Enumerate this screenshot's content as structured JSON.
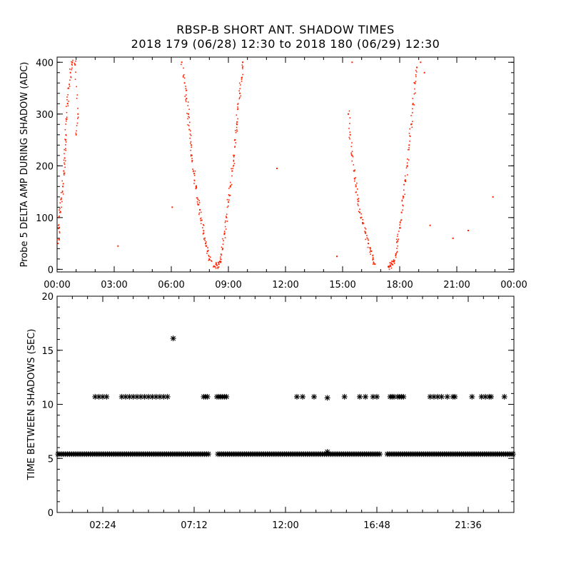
{
  "title": "RBSP-B SHORT ANT. SHADOW TIMES",
  "subtitle": "2018 179 (06/28) 12:30 to 2018 180 (06/29) 12:30",
  "colors": {
    "points_top": "#ff2200",
    "points_bottom": "#000000",
    "axes": "#000000"
  },
  "chart_data": [
    {
      "type": "scatter",
      "ylabel": "Probe 5 DELTA AMP DURING SHADOW (ADC)",
      "xlim_hours": [
        0,
        24
      ],
      "ylim": [
        -5,
        410
      ],
      "x_ticks": [
        "00:00",
        "03:00",
        "06:00",
        "09:00",
        "12:00",
        "15:00",
        "18:00",
        "21:00",
        "00:00"
      ],
      "y_ticks": [
        "0",
        "100",
        "200",
        "300",
        "400"
      ],
      "grid": false,
      "series": [
        {
          "points": [
            [
              0.05,
              50
            ],
            [
              0.1,
              80
            ],
            [
              0.15,
              110
            ],
            [
              0.2,
              135
            ],
            [
              0.3,
              160
            ],
            [
              0.35,
              190
            ],
            [
              0.4,
              215
            ],
            [
              0.45,
              250
            ],
            [
              0.5,
              290
            ],
            [
              0.55,
              320
            ],
            [
              0.6,
              350
            ],
            [
              0.7,
              380
            ],
            [
              0.8,
              400
            ],
            [
              0.95,
              395
            ],
            [
              1.1,
              300
            ],
            [
              1.0,
              260
            ],
            [
              6.55,
              400
            ],
            [
              6.7,
              360
            ],
            [
              6.8,
              330
            ],
            [
              6.9,
              300
            ],
            [
              6.95,
              270
            ],
            [
              7.05,
              240
            ],
            [
              7.1,
              210
            ],
            [
              7.2,
              185
            ],
            [
              7.3,
              160
            ],
            [
              7.4,
              135
            ],
            [
              7.5,
              115
            ],
            [
              7.6,
              95
            ],
            [
              7.7,
              70
            ],
            [
              7.8,
              50
            ],
            [
              7.9,
              35
            ],
            [
              8.0,
              20
            ],
            [
              8.3,
              5
            ],
            [
              8.4,
              8
            ],
            [
              8.5,
              10
            ],
            [
              8.6,
              15
            ],
            [
              8.7,
              40
            ],
            [
              8.8,
              70
            ],
            [
              8.9,
              100
            ],
            [
              9.0,
              130
            ],
            [
              9.1,
              160
            ],
            [
              9.2,
              190
            ],
            [
              9.3,
              220
            ],
            [
              9.35,
              250
            ],
            [
              9.45,
              280
            ],
            [
              9.5,
              310
            ],
            [
              9.6,
              340
            ],
            [
              9.7,
              370
            ],
            [
              9.75,
              400
            ],
            [
              15.3,
              300
            ],
            [
              15.4,
              260
            ],
            [
              15.5,
              220
            ],
            [
              15.6,
              190
            ],
            [
              15.7,
              160
            ],
            [
              15.8,
              135
            ],
            [
              15.9,
              110
            ],
            [
              16.05,
              90
            ],
            [
              16.2,
              70
            ],
            [
              16.35,
              50
            ],
            [
              16.5,
              35
            ],
            [
              16.6,
              20
            ],
            [
              16.7,
              10
            ],
            [
              15.5,
              400
            ],
            [
              17.4,
              5
            ],
            [
              17.5,
              8
            ],
            [
              17.6,
              10
            ],
            [
              17.7,
              15
            ],
            [
              17.8,
              30
            ],
            [
              17.9,
              55
            ],
            [
              18.0,
              80
            ],
            [
              18.1,
              110
            ],
            [
              18.2,
              140
            ],
            [
              18.3,
              170
            ],
            [
              18.4,
              200
            ],
            [
              18.5,
              240
            ],
            [
              18.6,
              280
            ],
            [
              18.7,
              320
            ],
            [
              18.8,
              360
            ],
            [
              18.9,
              390
            ],
            [
              19.1,
              400
            ],
            [
              19.3,
              380
            ],
            [
              3.2,
              45
            ],
            [
              6.05,
              120
            ],
            [
              11.55,
              195
            ],
            [
              14.7,
              25
            ],
            [
              19.6,
              85
            ],
            [
              20.8,
              60
            ],
            [
              21.6,
              75
            ],
            [
              22.9,
              140
            ]
          ]
        }
      ]
    },
    {
      "type": "scatter",
      "ylabel": "TIME BETWEEN SHADOWS (SEC)",
      "xlim_hours": [
        0,
        24
      ],
      "ylim": [
        0,
        20
      ],
      "x_ticks": [
        "02:24",
        "07:12",
        "12:00",
        "16:48",
        "21:36"
      ],
      "y_ticks": [
        "0",
        "5",
        "10",
        "15",
        "20"
      ],
      "grid": false,
      "baseline_value": 5.4,
      "baseline_gaps_hours": [
        [
          8.0,
          8.4
        ],
        [
          17.0,
          17.3
        ]
      ],
      "series": [
        {
          "points": [
            [
              2.0,
              10.7
            ],
            [
              2.2,
              10.7
            ],
            [
              2.4,
              10.7
            ],
            [
              2.6,
              10.7
            ],
            [
              3.4,
              10.7
            ],
            [
              3.6,
              10.7
            ],
            [
              3.8,
              10.7
            ],
            [
              4.0,
              10.7
            ],
            [
              4.2,
              10.7
            ],
            [
              4.4,
              10.7
            ],
            [
              4.6,
              10.7
            ],
            [
              4.8,
              10.7
            ],
            [
              5.0,
              10.7
            ],
            [
              5.2,
              10.7
            ],
            [
              5.4,
              10.7
            ],
            [
              5.6,
              10.7
            ],
            [
              5.8,
              10.7
            ],
            [
              6.1,
              16.1
            ],
            [
              7.7,
              10.7
            ],
            [
              7.8,
              10.7
            ],
            [
              7.9,
              10.7
            ],
            [
              8.4,
              10.7
            ],
            [
              8.5,
              10.7
            ],
            [
              8.6,
              10.7
            ],
            [
              8.7,
              10.7
            ],
            [
              8.8,
              10.7
            ],
            [
              8.9,
              10.7
            ],
            [
              12.6,
              10.7
            ],
            [
              12.9,
              10.7
            ],
            [
              13.5,
              10.7
            ],
            [
              14.2,
              10.6
            ],
            [
              15.1,
              10.7
            ],
            [
              15.9,
              10.7
            ],
            [
              16.2,
              10.7
            ],
            [
              16.6,
              10.7
            ],
            [
              16.8,
              10.7
            ],
            [
              17.5,
              10.7
            ],
            [
              17.6,
              10.7
            ],
            [
              17.7,
              10.7
            ],
            [
              17.9,
              10.7
            ],
            [
              18.0,
              10.7
            ],
            [
              18.1,
              10.7
            ],
            [
              18.2,
              10.7
            ],
            [
              19.6,
              10.7
            ],
            [
              19.8,
              10.7
            ],
            [
              20.0,
              10.7
            ],
            [
              20.2,
              10.7
            ],
            [
              20.5,
              10.7
            ],
            [
              20.8,
              10.7
            ],
            [
              20.9,
              10.7
            ],
            [
              21.8,
              10.7
            ],
            [
              22.3,
              10.7
            ],
            [
              22.5,
              10.7
            ],
            [
              22.7,
              10.7
            ],
            [
              22.8,
              10.7
            ],
            [
              23.5,
              10.7
            ],
            [
              14.2,
              5.6
            ]
          ]
        }
      ]
    }
  ]
}
